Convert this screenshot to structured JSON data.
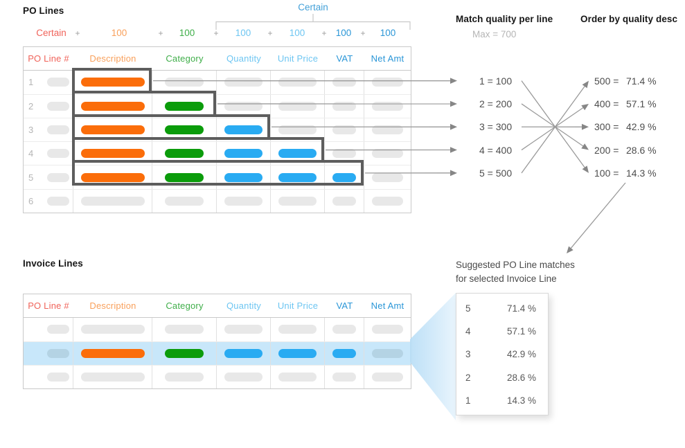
{
  "colors": {
    "pill": {
      "gray": "#e8e8e8",
      "orange": "#fb6d0a",
      "green": "#0b9c0b",
      "blue": "#29abf2",
      "grayblue": "#b4d3e4"
    },
    "highlight_row": "#c8e7fa",
    "box_outline": "#5d5d5d",
    "arrow_line": "#9a9a9a",
    "arrow_head": "#868686",
    "bracket": "#c9c9c9",
    "certain_group": "#42a0d8",
    "funnel_start": "#b7ddf6",
    "funnel_end": "#e9f5fd"
  },
  "columns": [
    {
      "key": "po-line-number",
      "label": "PO Line #",
      "color": "#f0635a"
    },
    {
      "key": "description",
      "label": "Description",
      "color": "#f9a05b"
    },
    {
      "key": "category",
      "label": "Category",
      "color": "#3fae49"
    },
    {
      "key": "quantity",
      "label": "Quantity",
      "color": "#6ec6f2"
    },
    {
      "key": "unit-price",
      "label": "Unit Price",
      "color": "#6ec6f2"
    },
    {
      "key": "vat",
      "label": "VAT",
      "color": "#2a96d7"
    },
    {
      "key": "net-amt",
      "label": "Net Amt",
      "color": "#2a96d7"
    }
  ],
  "po_section": {
    "title": "PO Lines",
    "certain_group_label": "Certain",
    "plus_sign": "+",
    "weights": [
      {
        "text": "Certain",
        "color": "#f0635a"
      },
      {
        "text": "100",
        "color": "#f9a05b"
      },
      {
        "text": "100",
        "color": "#3fae49"
      },
      {
        "text": "100",
        "color": "#6ec6f2"
      },
      {
        "text": "100",
        "color": "#6ec6f2"
      },
      {
        "text": "100",
        "color": "#2a96d7"
      },
      {
        "text": "100",
        "color": "#2a96d7"
      }
    ],
    "rows": [
      {
        "num": "1",
        "cells": [
          "gray",
          "orange",
          "gray",
          "gray",
          "gray",
          "gray",
          "gray"
        ],
        "box_span": 1
      },
      {
        "num": "2",
        "cells": [
          "gray",
          "orange",
          "green",
          "gray",
          "gray",
          "gray",
          "gray"
        ],
        "box_span": 2
      },
      {
        "num": "3",
        "cells": [
          "gray",
          "orange",
          "green",
          "blue",
          "gray",
          "gray",
          "gray"
        ],
        "box_span": 3
      },
      {
        "num": "4",
        "cells": [
          "gray",
          "orange",
          "green",
          "blue",
          "blue",
          "gray",
          "gray"
        ],
        "box_span": 4
      },
      {
        "num": "5",
        "cells": [
          "gray",
          "orange",
          "green",
          "blue",
          "blue",
          "blue",
          "gray"
        ],
        "box_span": 5
      },
      {
        "num": "6",
        "cells": [
          "gray",
          "gray",
          "gray",
          "gray",
          "gray",
          "gray",
          "gray"
        ],
        "box_span": 0
      }
    ]
  },
  "match_quality": {
    "title": "Match quality per line",
    "subtitle": "Max = 700",
    "items": [
      "1 = 100",
      "2 = 200",
      "3 = 300",
      "4 = 400",
      "5 = 500"
    ]
  },
  "order_by": {
    "title": "Order by quality desc",
    "items": [
      {
        "label": "500 =",
        "pct": "71.4 %"
      },
      {
        "label": "400 =",
        "pct": "57.1 %"
      },
      {
        "label": "300 =",
        "pct": "42.9 %"
      },
      {
        "label": "200 =",
        "pct": "28.6 %"
      },
      {
        "label": "100 =",
        "pct": "14.3 %"
      }
    ]
  },
  "suggested": {
    "caption_line1": "Suggested PO Line matches",
    "caption_line2": "for selected Invoice Line",
    "rows": [
      {
        "line": "5",
        "pct": "71.4 %"
      },
      {
        "line": "4",
        "pct": "57.1 %"
      },
      {
        "line": "3",
        "pct": "42.9 %"
      },
      {
        "line": "2",
        "pct": "28.6 %"
      },
      {
        "line": "1",
        "pct": "14.3 %"
      }
    ]
  },
  "invoice_section": {
    "title": "Invoice Lines",
    "rows": [
      {
        "cells": [
          "gray",
          "gray",
          "gray",
          "gray",
          "gray",
          "gray",
          "gray"
        ],
        "highlighted": false
      },
      {
        "cells": [
          "grayblue",
          "orange",
          "green",
          "blue",
          "blue",
          "blue",
          "grayblue"
        ],
        "highlighted": true
      },
      {
        "cells": [
          "gray",
          "gray",
          "gray",
          "gray",
          "gray",
          "gray",
          "gray"
        ],
        "highlighted": false
      }
    ]
  }
}
